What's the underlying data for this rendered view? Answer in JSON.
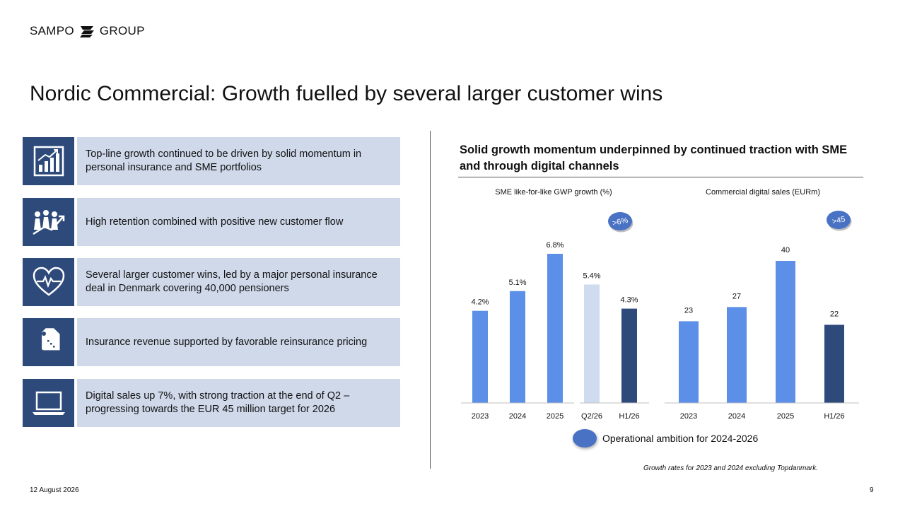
{
  "logo": {
    "left": "SAMPO",
    "right": "GROUP"
  },
  "title": "Nordic Commercial: Growth fuelled by several larger customer wins",
  "cards": [
    {
      "icon": "bar-growth-icon",
      "text": "Top-line growth continued to be driven by solid momentum in personal insurance and SME portfolios"
    },
    {
      "icon": "people-growth-icon",
      "text": "High retention combined with positive new customer flow"
    },
    {
      "icon": "heart-pulse-icon",
      "text": "Several larger customer wins, led by a major personal insurance deal in Denmark covering 40,000 pensioners"
    },
    {
      "icon": "price-tag-icon",
      "text": "Insurance revenue supported by favorable reinsurance pricing"
    },
    {
      "icon": "laptop-icon",
      "text": "Digital sales up 7%, with strong traction at the end of Q2 – progressing towards the EUR 45 million target for 2026"
    }
  ],
  "right_heading": "Solid growth momentum underpinned by continued traction with SME and through digital channels",
  "colors": {
    "bar": "#5B8FE8",
    "bar_light": "#CFDCF0",
    "bar_dark": "#2E4A7B",
    "bubble": "#4A72C4",
    "icon_bg": "#2E4A7B",
    "card_bg": "#CFD9EA"
  },
  "chart_data": [
    {
      "type": "bar",
      "title": "SME like-for-like GWP growth (%)",
      "categories": [
        "2023",
        "2024",
        "2025",
        "Q2/26",
        "H1/26"
      ],
      "values": [
        4.2,
        5.1,
        6.8,
        5.4,
        4.3
      ],
      "labels": [
        "4.2%",
        "5.1%",
        "6.8%",
        "5.4%",
        "4.3%"
      ],
      "ambition_label": ">6%",
      "grid": false
    },
    {
      "type": "bar",
      "title": "Commercial digital sales (EURm)",
      "categories": [
        "2023",
        "2024",
        "2025",
        "H1/26"
      ],
      "values": [
        23,
        27,
        40,
        22
      ],
      "labels": [
        "23",
        "27",
        "40",
        "22"
      ],
      "ambition_label": ">45",
      "grid": false
    }
  ],
  "legend": {
    "label": "Operational ambition for 2024-2026"
  },
  "footnote": "Growth rates for 2023 and 2024 excluding Topdanmark.",
  "date": "12 August 2026",
  "page_number": "9"
}
